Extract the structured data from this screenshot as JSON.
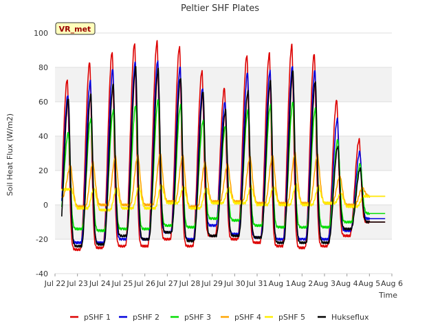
{
  "chart_data": {
    "type": "line",
    "title": "Peltier SHF Plates",
    "xlabel": "Time",
    "ylabel": "Soil Heat Flux (W/m2)",
    "ylim": [
      -40,
      100
    ],
    "yticks": [
      -40,
      -20,
      0,
      20,
      40,
      60,
      80,
      100
    ],
    "xlim_days": [
      0,
      15
    ],
    "xticks": [
      {
        "day": 0,
        "label": "Jul 22"
      },
      {
        "day": 1,
        "label": "Jul 23"
      },
      {
        "day": 2,
        "label": "Jul 24"
      },
      {
        "day": 3,
        "label": "Jul 25"
      },
      {
        "day": 4,
        "label": "Jul 26"
      },
      {
        "day": 5,
        "label": "Jul 27"
      },
      {
        "day": 6,
        "label": "Jul 28"
      },
      {
        "day": 7,
        "label": "Jul 29"
      },
      {
        "day": 8,
        "label": "Jul 30"
      },
      {
        "day": 9,
        "label": "Jul 31"
      },
      {
        "day": 10,
        "label": "Aug 1"
      },
      {
        "day": 11,
        "label": "Aug 2"
      },
      {
        "day": 12,
        "label": "Aug 3"
      },
      {
        "day": 13,
        "label": "Aug 4"
      },
      {
        "day": 14,
        "label": "Aug 5"
      },
      {
        "day": 15,
        "label": "Aug 6"
      }
    ],
    "site_label": "VR_met",
    "legend_position": "bottom",
    "series": [
      {
        "name": "pSHF 1",
        "color": "#dd0000",
        "peaks": [
          73,
          83,
          89,
          94,
          95,
          92,
          78,
          68,
          87,
          88,
          93,
          88,
          61,
          38
        ],
        "troughs": [
          -25,
          -26,
          -25,
          -24,
          -24,
          -20,
          -24,
          -18,
          -20,
          -22,
          -24,
          -25,
          -24,
          -18,
          -10
        ],
        "peak_phase": 0.55,
        "rise": 0.42,
        "width": 0.2
      },
      {
        "name": "pSHF 2",
        "color": "#0000dd",
        "peaks": [
          64,
          72,
          79,
          83,
          84,
          80,
          68,
          60,
          77,
          78,
          81,
          78,
          50,
          31
        ],
        "troughs": [
          -19,
          -22,
          -22,
          -20,
          -20,
          -16,
          -20,
          -12,
          -17,
          -19,
          -20,
          -20,
          -20,
          -15,
          -8
        ],
        "peak_phase": 0.58,
        "rise": 0.42,
        "width": 0.2
      },
      {
        "name": "pSHF 3",
        "color": "#00dd00",
        "peaks": [
          42,
          50,
          55,
          58,
          61,
          58,
          49,
          46,
          55,
          58,
          60,
          56,
          38,
          24
        ],
        "troughs": [
          -8,
          -14,
          -15,
          -14,
          -14,
          -12,
          -13,
          -8,
          -9,
          -12,
          -13,
          -13,
          -13,
          -10,
          -5
        ],
        "peak_phase": 0.6,
        "rise": 0.4,
        "width": 0.21
      },
      {
        "name": "pSHF 4",
        "color": "#ffa500",
        "peaks": [
          23,
          25,
          28,
          29,
          30,
          29,
          25,
          24,
          28,
          29,
          30,
          29,
          17,
          10
        ],
        "troughs": [
          5,
          -1,
          0,
          0,
          0,
          2,
          -1,
          2,
          2,
          1,
          1,
          1,
          1,
          0,
          5
        ],
        "peak_phase": 0.7,
        "rise": 0.35,
        "width": 0.3
      },
      {
        "name": "pSHF 5",
        "color": "#ffee00",
        "peaks": [
          9,
          10,
          10,
          11,
          12,
          11,
          10,
          10,
          11,
          11,
          12,
          11,
          7,
          5
        ],
        "troughs": [
          9,
          -2,
          -3,
          -2,
          -2,
          1,
          -2,
          1,
          1,
          0,
          0,
          0,
          1,
          -1,
          5
        ],
        "peak_phase": 0.75,
        "rise": 0.3,
        "width": 0.35
      },
      {
        "name": "Hukseflux",
        "color": "#000000",
        "peaks": [
          62,
          64,
          70,
          80,
          79,
          74,
          66,
          55,
          66,
          72,
          78,
          72,
          34,
          21
        ],
        "troughs": [
          -22,
          -24,
          -23,
          -18,
          -20,
          -16,
          -21,
          -18,
          -18,
          -19,
          -22,
          -22,
          -22,
          -14,
          -10
        ],
        "peak_phase": 0.6,
        "rise": 0.42,
        "width": 0.2
      }
    ]
  }
}
